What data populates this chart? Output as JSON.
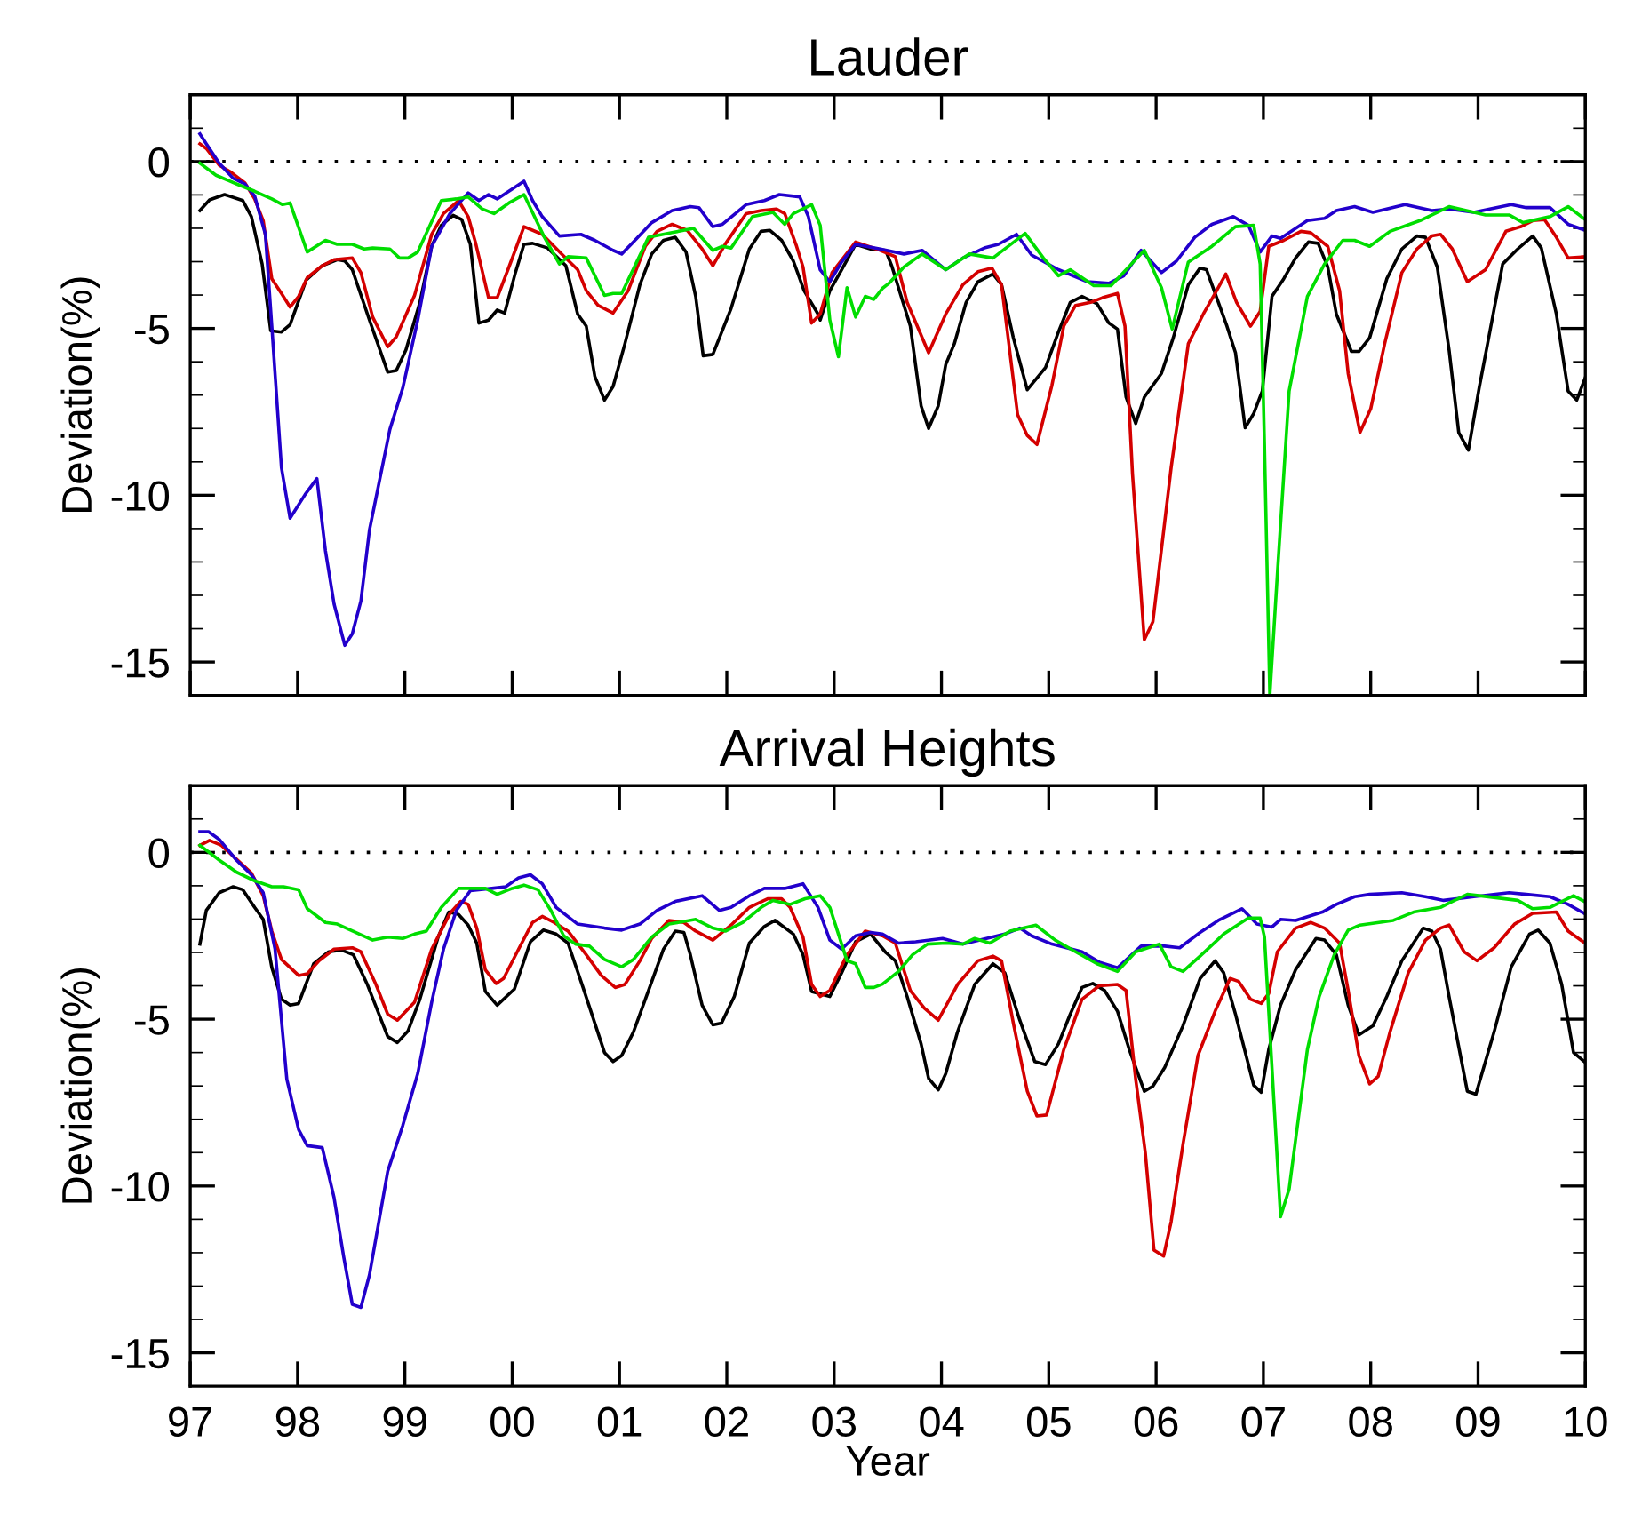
{
  "chart_data": [
    {
      "type": "line",
      "title": "Lauder",
      "ylabel": "Deviation(%)",
      "tick_labels": "y",
      "line_style": "solid",
      "xlim": [
        1997,
        2010
      ],
      "ylim": [
        -16,
        2
      ],
      "yticks": [
        -15,
        -10,
        -5,
        0,
        {
          "value": -16,
          "label": null
        },
        {
          "value": -14,
          "label": null
        },
        {
          "value": -13,
          "label": null
        },
        {
          "value": -12,
          "label": null
        },
        {
          "value": -11,
          "label": null
        },
        {
          "value": -9,
          "label": null
        },
        {
          "value": -8,
          "label": null
        },
        {
          "value": -7,
          "label": null
        },
        {
          "value": -6,
          "label": null
        },
        {
          "value": -4,
          "label": null
        },
        {
          "value": -3,
          "label": null
        },
        {
          "value": -2,
          "label": null
        },
        {
          "value": -1,
          "label": null
        },
        {
          "value": 1,
          "label": null
        },
        {
          "value": 2,
          "label": null
        }
      ],
      "ref_lines": [
        {
          "axis": "y",
          "value": 0,
          "color": "#000000",
          "line_style": "dotted"
        }
      ],
      "series": [
        {
          "color": "#000000",
          "x": [
            1997.09,
            1997.18,
            1997.32,
            1997.49,
            1997.57,
            1997.67,
            1997.75,
            1997.85,
            1997.93,
            1998.08,
            1998.23,
            1998.37,
            1998.44,
            1998.51,
            1998.67,
            1998.84,
            1998.92,
            1999.01,
            1999.14,
            1999.25,
            1999.34,
            1999.45,
            1999.53,
            1999.61,
            1999.69,
            1999.78,
            1999.86,
            1999.93,
            2000.03,
            2000.11,
            2000.19,
            2000.33,
            2000.5,
            2000.61,
            2000.69,
            2000.77,
            2000.86,
            2000.94,
            2001.05,
            2001.19,
            2001.3,
            2001.41,
            2001.52,
            2001.62,
            2001.71,
            2001.78,
            2001.87,
            2002.04,
            2002.21,
            2002.32,
            2002.4,
            2002.51,
            2002.62,
            2002.72,
            2002.85,
            2002.87,
            2002.96,
            2003.07,
            2003.2,
            2003.34,
            2003.48,
            2003.54,
            2003.71,
            2003.81,
            2003.88,
            2003.97,
            2004.04,
            2004.12,
            2004.23,
            2004.34,
            2004.48,
            2004.56,
            2004.67,
            2004.8,
            2004.97,
            2005.09,
            2005.2,
            2005.31,
            2005.45,
            2005.56,
            2005.64,
            2005.72,
            2005.81,
            2005.89,
            2006.05,
            2006.16,
            2006.3,
            2006.41,
            2006.47,
            2006.55,
            2006.66,
            2006.74,
            2006.83,
            2006.91,
            2006.99,
            2007.08,
            2007.19,
            2007.3,
            2007.42,
            2007.51,
            2007.6,
            2007.68,
            2007.82,
            2007.89,
            2007.99,
            2008.15,
            2008.29,
            2008.43,
            2008.51,
            2008.62,
            2008.73,
            2008.82,
            2008.91,
            2009.01,
            2009.12,
            2009.23,
            2009.37,
            2009.51,
            2009.59,
            2009.73,
            2009.84,
            2009.92,
            2010.0
          ],
          "values": [
            -1.47,
            -1.15,
            -0.99,
            -1.17,
            -1.65,
            -3.07,
            -5.07,
            -5.11,
            -4.89,
            -3.55,
            -3.12,
            -2.94,
            -2.98,
            -3.24,
            -4.75,
            -6.31,
            -6.26,
            -5.64,
            -4.22,
            -2.54,
            -1.91,
            -1.61,
            -1.74,
            -2.48,
            -4.84,
            -4.75,
            -4.45,
            -4.54,
            -3.33,
            -2.48,
            -2.45,
            -2.59,
            -3.12,
            -4.57,
            -4.93,
            -6.44,
            -7.15,
            -6.74,
            -5.46,
            -3.69,
            -2.77,
            -2.36,
            -2.27,
            -2.71,
            -4.04,
            -5.82,
            -5.78,
            -4.4,
            -2.62,
            -2.09,
            -2.06,
            -2.36,
            -2.98,
            -3.87,
            -4.57,
            -4.75,
            -3.87,
            -3.24,
            -2.48,
            -2.62,
            -2.66,
            -3.16,
            -4.93,
            -7.32,
            -8.0,
            -7.32,
            -6.08,
            -5.46,
            -4.22,
            -3.6,
            -3.37,
            -3.69,
            -5.28,
            -6.84,
            -6.17,
            -5.11,
            -4.22,
            -4.04,
            -4.26,
            -4.84,
            -5.02,
            -7.06,
            -7.85,
            -7.06,
            -6.35,
            -5.28,
            -3.69,
            -3.19,
            -3.24,
            -3.95,
            -4.93,
            -5.73,
            -7.98,
            -7.55,
            -6.88,
            -4.04,
            -3.51,
            -2.89,
            -2.41,
            -2.45,
            -3.16,
            -4.57,
            -5.69,
            -5.69,
            -5.28,
            -3.51,
            -2.62,
            -2.23,
            -2.27,
            -3.16,
            -5.64,
            -8.12,
            -8.65,
            -6.79,
            -4.93,
            -3.07,
            -2.62,
            -2.23,
            -2.59,
            -4.57,
            -6.88,
            -7.15,
            -6.47
          ]
        },
        {
          "color": "#d40000",
          "x": [
            1997.09,
            1997.15,
            1997.27,
            1997.38,
            1997.51,
            1997.6,
            1997.68,
            1997.76,
            1997.85,
            1997.93,
            1998.01,
            1998.09,
            1998.23,
            1998.34,
            1998.51,
            1998.59,
            1998.7,
            1998.84,
            1998.92,
            1999.09,
            1999.25,
            1999.36,
            1999.5,
            1999.59,
            1999.66,
            1999.78,
            1999.86,
            1999.97,
            2000.11,
            2000.28,
            2000.47,
            2000.61,
            2000.69,
            2000.8,
            2000.94,
            2001.08,
            2001.24,
            2001.35,
            2001.49,
            2001.63,
            2001.77,
            2001.87,
            2001.99,
            2002.18,
            2002.32,
            2002.46,
            2002.54,
            2002.65,
            2002.71,
            2002.79,
            2002.87,
            2002.98,
            2003.2,
            2003.43,
            2003.57,
            2003.68,
            2003.88,
            2004.04,
            2004.2,
            2004.34,
            2004.47,
            2004.56,
            2004.71,
            2004.8,
            2004.89,
            2005.03,
            2005.14,
            2005.25,
            2005.39,
            2005.5,
            2005.64,
            2005.71,
            2005.78,
            2005.89,
            2005.97,
            2006.14,
            2006.3,
            2006.44,
            2006.55,
            2006.65,
            2006.75,
            2006.88,
            2006.97,
            2007.05,
            2007.19,
            2007.35,
            2007.44,
            2007.6,
            2007.71,
            2007.79,
            2007.9,
            2008.0,
            2008.13,
            2008.29,
            2008.43,
            2008.57,
            2008.65,
            2008.76,
            2008.9,
            2009.07,
            2009.26,
            2009.4,
            2009.51,
            2009.62,
            2009.73,
            2009.84,
            2010.0
          ],
          "values": [
            0.53,
            0.39,
            -0.11,
            -0.32,
            -0.64,
            -1.12,
            -1.77,
            -3.51,
            -3.95,
            -4.36,
            -4.04,
            -3.48,
            -3.12,
            -2.94,
            -2.89,
            -3.33,
            -4.66,
            -5.55,
            -5.25,
            -4.01,
            -2.18,
            -1.56,
            -1.17,
            -1.65,
            -2.45,
            -4.08,
            -4.08,
            -3.16,
            -1.95,
            -2.18,
            -2.8,
            -3.24,
            -3.87,
            -4.31,
            -4.54,
            -3.87,
            -2.54,
            -2.09,
            -1.88,
            -2.06,
            -2.62,
            -3.12,
            -2.45,
            -1.56,
            -1.47,
            -1.42,
            -1.56,
            -2.54,
            -3.16,
            -4.84,
            -4.57,
            -3.33,
            -2.41,
            -2.66,
            -2.85,
            -4.22,
            -5.73,
            -4.57,
            -3.69,
            -3.3,
            -3.19,
            -3.69,
            -7.59,
            -8.21,
            -8.48,
            -6.7,
            -4.93,
            -4.31,
            -4.22,
            -4.08,
            -3.95,
            -4.93,
            -9.36,
            -14.33,
            -13.79,
            -9.18,
            -5.46,
            -4.57,
            -3.95,
            -3.37,
            -4.22,
            -4.93,
            -4.49,
            -2.54,
            -2.36,
            -2.09,
            -2.13,
            -2.54,
            -3.87,
            -6.35,
            -8.12,
            -7.41,
            -5.46,
            -3.33,
            -2.62,
            -2.23,
            -2.18,
            -2.62,
            -3.6,
            -3.24,
            -2.09,
            -1.95,
            -1.77,
            -1.74,
            -2.27,
            -2.89,
            -2.85
          ]
        },
        {
          "color": "#2200cc",
          "x": [
            1997.09,
            1997.15,
            1997.27,
            1997.4,
            1997.51,
            1997.6,
            1997.7,
            1997.76,
            1997.85,
            1997.93,
            1998.07,
            1998.18,
            1998.26,
            1998.34,
            1998.44,
            1998.51,
            1998.59,
            1998.67,
            1998.86,
            1998.98,
            1999.12,
            1999.25,
            1999.42,
            1999.59,
            1999.69,
            1999.78,
            1999.86,
            2000.11,
            2000.19,
            2000.28,
            2000.44,
            2000.64,
            2000.77,
            2000.94,
            2001.02,
            2001.13,
            2001.3,
            2001.49,
            2001.66,
            2001.74,
            2001.87,
            2001.96,
            2002.18,
            2002.35,
            2002.49,
            2002.68,
            2002.76,
            2002.87,
            2002.96,
            2003.07,
            2003.2,
            2003.43,
            2003.65,
            2003.82,
            2004.04,
            2004.2,
            2004.4,
            2004.53,
            2004.7,
            2004.84,
            2005.09,
            2005.36,
            2005.56,
            2005.7,
            2005.86,
            2006.05,
            2006.19,
            2006.36,
            2006.52,
            2006.72,
            2006.86,
            2006.97,
            2007.08,
            2007.16,
            2007.41,
            2007.57,
            2007.68,
            2007.85,
            2008.02,
            2008.32,
            2008.57,
            2008.73,
            2008.96,
            2009.31,
            2009.45,
            2009.67,
            2009.84,
            2010.0
          ],
          "values": [
            0.83,
            0.53,
            -0.05,
            -0.5,
            -0.67,
            -1.03,
            -2.18,
            -4.93,
            -9.18,
            -10.69,
            -9.98,
            -9.5,
            -11.67,
            -13.26,
            -14.5,
            -14.15,
            -13.17,
            -11.04,
            -8.03,
            -6.79,
            -4.75,
            -2.54,
            -1.56,
            -0.94,
            -1.17,
            -0.99,
            -1.12,
            -0.59,
            -1.17,
            -1.65,
            -2.23,
            -2.18,
            -2.36,
            -2.66,
            -2.77,
            -2.41,
            -1.83,
            -1.47,
            -1.35,
            -1.38,
            -1.95,
            -1.88,
            -1.29,
            -1.17,
            -0.99,
            -1.06,
            -1.65,
            -3.24,
            -3.6,
            -3.01,
            -2.48,
            -2.62,
            -2.77,
            -2.66,
            -3.24,
            -2.89,
            -2.59,
            -2.48,
            -2.18,
            -2.8,
            -3.24,
            -3.6,
            -3.65,
            -3.42,
            -2.66,
            -3.33,
            -2.98,
            -2.27,
            -1.88,
            -1.65,
            -1.91,
            -2.71,
            -2.23,
            -2.3,
            -1.77,
            -1.7,
            -1.47,
            -1.35,
            -1.52,
            -1.29,
            -1.47,
            -1.42,
            -1.52,
            -1.29,
            -1.38,
            -1.38,
            -1.88,
            -2.06
          ]
        },
        {
          "color": "#00dd00",
          "x": [
            1997.09,
            1997.24,
            1997.43,
            1997.6,
            1997.76,
            1997.86,
            1997.93,
            1998.09,
            1998.26,
            1998.37,
            1998.51,
            1998.62,
            1998.7,
            1998.86,
            1998.95,
            1999.03,
            1999.12,
            1999.34,
            1999.48,
            1999.59,
            1999.72,
            1999.83,
            1999.97,
            2000.11,
            2000.3,
            2000.44,
            2000.52,
            2000.69,
            2000.86,
            2000.94,
            2001.02,
            2001.27,
            2001.49,
            2001.69,
            2001.87,
            2001.96,
            2002.04,
            2002.24,
            2002.43,
            2002.54,
            2002.62,
            2002.79,
            2002.87,
            2002.96,
            2003.04,
            2003.12,
            2003.2,
            2003.29,
            2003.37,
            2003.45,
            2003.51,
            2003.65,
            2003.82,
            2004.04,
            2004.26,
            2004.48,
            2004.78,
            2004.95,
            2005.09,
            2005.2,
            2005.42,
            2005.58,
            2005.89,
            2006.05,
            2006.15,
            2006.3,
            2006.52,
            2006.74,
            2006.91,
            2006.97,
            2007.01,
            2007.06,
            2007.13,
            2007.24,
            2007.41,
            2007.57,
            2007.74,
            2007.85,
            2007.99,
            2008.18,
            2008.46,
            2008.73,
            2009.07,
            2009.29,
            2009.42,
            2009.67,
            2009.84,
            2010.0
          ],
          "values": [
            -0.05,
            -0.41,
            -0.67,
            -0.89,
            -1.12,
            -1.29,
            -1.24,
            -2.71,
            -2.36,
            -2.48,
            -2.48,
            -2.62,
            -2.59,
            -2.62,
            -2.89,
            -2.89,
            -2.71,
            -1.17,
            -1.12,
            -1.06,
            -1.42,
            -1.56,
            -1.24,
            -0.99,
            -2.27,
            -3.07,
            -2.85,
            -2.89,
            -4.01,
            -3.95,
            -3.95,
            -2.27,
            -2.13,
            -2.0,
            -2.66,
            -2.54,
            -2.59,
            -1.65,
            -1.52,
            -1.88,
            -1.56,
            -1.29,
            -1.91,
            -4.75,
            -5.85,
            -3.78,
            -4.66,
            -4.04,
            -4.13,
            -3.8,
            -3.65,
            -3.16,
            -2.77,
            -3.24,
            -2.77,
            -2.89,
            -2.15,
            -2.89,
            -3.42,
            -3.24,
            -3.72,
            -3.72,
            -2.66,
            -3.78,
            -5.02,
            -3.01,
            -2.54,
            -1.95,
            -1.91,
            -3.07,
            -8.48,
            -16,
            -12.38,
            -6.88,
            -4.04,
            -3.07,
            -2.36,
            -2.36,
            -2.54,
            -2.09,
            -1.77,
            -1.35,
            -1.6,
            -1.6,
            -1.83,
            -1.65,
            -1.35,
            -1.74
          ]
        }
      ]
    },
    {
      "type": "line",
      "title": "Arrival Heights",
      "xlabel": "Year",
      "ylabel": "Deviation(%)",
      "line_style": "solid",
      "xlim": [
        1997,
        2010
      ],
      "ylim": [
        -16,
        2
      ],
      "xticks": [
        {
          "value": 1997,
          "label": "97"
        },
        {
          "value": 1998,
          "label": "98"
        },
        {
          "value": 1999,
          "label": "99"
        },
        {
          "value": 2000,
          "label": "00"
        },
        {
          "value": 2001,
          "label": "01"
        },
        {
          "value": 2002,
          "label": "02"
        },
        {
          "value": 2003,
          "label": "03"
        },
        {
          "value": 2004,
          "label": "04"
        },
        {
          "value": 2005,
          "label": "05"
        },
        {
          "value": 2006,
          "label": "06"
        },
        {
          "value": 2007,
          "label": "07"
        },
        {
          "value": 2008,
          "label": "08"
        },
        {
          "value": 2009,
          "label": "09"
        },
        {
          "value": 2010,
          "label": "10"
        }
      ],
      "yticks": [
        -15,
        -10,
        -5,
        0,
        {
          "value": -16,
          "label": null
        },
        {
          "value": -14,
          "label": null
        },
        {
          "value": -13,
          "label": null
        },
        {
          "value": -12,
          "label": null
        },
        {
          "value": -11,
          "label": null
        },
        {
          "value": -9,
          "label": null
        },
        {
          "value": -8,
          "label": null
        },
        {
          "value": -7,
          "label": null
        },
        {
          "value": -6,
          "label": null
        },
        {
          "value": -4,
          "label": null
        },
        {
          "value": -3,
          "label": null
        },
        {
          "value": -2,
          "label": null
        },
        {
          "value": -1,
          "label": null
        },
        {
          "value": 1,
          "label": null
        },
        {
          "value": 2,
          "label": null
        }
      ],
      "ref_lines": [
        {
          "axis": "y",
          "value": 0,
          "color": "#000000",
          "line_style": "dotted"
        }
      ],
      "series": [
        {
          "color": "#000000",
          "x": [
            1997.09,
            1997.15,
            1997.27,
            1997.4,
            1997.49,
            1997.6,
            1997.68,
            1997.76,
            1997.85,
            1997.93,
            1998.01,
            1998.15,
            1998.29,
            1998.41,
            1998.52,
            1998.65,
            1998.84,
            1998.93,
            1999.03,
            1999.14,
            1999.31,
            1999.41,
            1999.5,
            1999.59,
            1999.67,
            1999.75,
            1999.86,
            2000.02,
            2000.17,
            2000.29,
            2000.41,
            2000.52,
            2000.66,
            2000.86,
            2000.94,
            2001.02,
            2001.13,
            2001.27,
            2001.41,
            2001.52,
            2001.6,
            2001.66,
            2001.77,
            2001.87,
            2001.95,
            2002.07,
            2002.21,
            2002.35,
            2002.45,
            2002.62,
            2002.71,
            2002.79,
            2002.96,
            2003.07,
            2003.2,
            2003.34,
            2003.48,
            2003.57,
            2003.68,
            2003.81,
            2003.88,
            2003.97,
            2004.04,
            2004.15,
            2004.31,
            2004.48,
            2004.59,
            2004.73,
            2004.87,
            2004.97,
            2005.09,
            2005.2,
            2005.31,
            2005.41,
            2005.52,
            2005.64,
            2005.75,
            2005.89,
            2005.97,
            2006.08,
            2006.25,
            2006.41,
            2006.55,
            2006.63,
            2006.74,
            2006.91,
            2006.98,
            2007.05,
            2007.16,
            2007.3,
            2007.49,
            2007.57,
            2007.68,
            2007.79,
            2007.89,
            2008.02,
            2008.15,
            2008.29,
            2008.49,
            2008.57,
            2008.65,
            2008.73,
            2008.9,
            2008.98,
            2009.15,
            2009.31,
            2009.48,
            2009.56,
            2009.67,
            2009.78,
            2009.89,
            2009.99
          ],
          "values": [
            -2.75,
            -1.74,
            -1.21,
            -1.03,
            -1.12,
            -1.65,
            -2.01,
            -3.45,
            -4.4,
            -4.58,
            -4.53,
            -3.34,
            -2.98,
            -2.93,
            -3.07,
            -3.96,
            -5.52,
            -5.7,
            -5.35,
            -4.4,
            -2.54,
            -1.79,
            -1.86,
            -2.18,
            -2.72,
            -4.17,
            -4.58,
            -4.1,
            -2.68,
            -2.33,
            -2.45,
            -2.72,
            -4.05,
            -6.0,
            -6.27,
            -6.09,
            -5.38,
            -4.14,
            -2.9,
            -2.36,
            -2.4,
            -3.07,
            -4.58,
            -5.17,
            -5.12,
            -4.32,
            -2.72,
            -2.22,
            -2.04,
            -2.45,
            -3.07,
            -4.17,
            -4.32,
            -3.61,
            -2.68,
            -2.45,
            -3.0,
            -3.25,
            -4.32,
            -5.74,
            -6.77,
            -7.12,
            -6.63,
            -5.38,
            -3.96,
            -3.34,
            -3.61,
            -5.03,
            -6.27,
            -6.36,
            -5.74,
            -4.85,
            -4.05,
            -3.93,
            -4.14,
            -4.76,
            -5.91,
            -7.16,
            -7.01,
            -6.45,
            -5.2,
            -3.78,
            -3.25,
            -3.61,
            -4.85,
            -6.98,
            -7.19,
            -5.91,
            -4.58,
            -3.52,
            -2.58,
            -2.63,
            -3.07,
            -4.58,
            -5.47,
            -5.2,
            -4.32,
            -3.25,
            -2.27,
            -2.36,
            -2.9,
            -4.32,
            -7.16,
            -7.25,
            -5.38,
            -3.43,
            -2.45,
            -2.33,
            -2.72,
            -3.96,
            -6.0,
            -6.27
          ]
        },
        {
          "color": "#d40000",
          "x": [
            1997.09,
            1997.18,
            1997.29,
            1997.43,
            1997.57,
            1997.68,
            1997.76,
            1997.85,
            1998.01,
            1998.09,
            1998.2,
            1998.34,
            1998.51,
            1998.59,
            1998.73,
            1998.84,
            1998.93,
            1999.09,
            1999.25,
            1999.42,
            1999.52,
            1999.59,
            1999.67,
            1999.75,
            1999.85,
            1999.92,
            2000.06,
            2000.19,
            2000.28,
            2000.39,
            2000.52,
            2000.69,
            2000.83,
            2000.96,
            2001.05,
            2001.19,
            2001.3,
            2001.46,
            2001.6,
            2001.71,
            2001.87,
            2002.04,
            2002.21,
            2002.38,
            2002.51,
            2002.59,
            2002.71,
            2002.79,
            2002.87,
            2002.96,
            2003.12,
            2003.29,
            2003.45,
            2003.57,
            2003.71,
            2003.84,
            2003.97,
            2004.15,
            2004.34,
            2004.48,
            2004.56,
            2004.67,
            2004.8,
            2004.89,
            2004.98,
            2005.14,
            2005.31,
            2005.47,
            2005.64,
            2005.72,
            2005.81,
            2005.9,
            2005.98,
            2006.07,
            2006.14,
            2006.25,
            2006.39,
            2006.55,
            2006.69,
            2006.77,
            2006.88,
            2006.98,
            2007.05,
            2007.13,
            2007.3,
            2007.44,
            2007.57,
            2007.71,
            2007.79,
            2007.89,
            2007.99,
            2008.07,
            2008.18,
            2008.35,
            2008.51,
            2008.65,
            2008.73,
            2008.87,
            2008.99,
            2009.15,
            2009.34,
            2009.51,
            2009.73,
            2009.84,
            2009.98
          ],
          "values": [
            0.21,
            0.36,
            0.21,
            -0.2,
            -0.62,
            -1.3,
            -2.36,
            -3.21,
            -3.69,
            -3.64,
            -3.25,
            -2.9,
            -2.86,
            -2.98,
            -3.96,
            -4.85,
            -5.03,
            -4.49,
            -2.9,
            -1.83,
            -1.47,
            -1.56,
            -2.27,
            -3.52,
            -3.93,
            -3.78,
            -2.9,
            -2.1,
            -1.92,
            -2.1,
            -2.36,
            -3.07,
            -3.69,
            -4.05,
            -3.96,
            -3.25,
            -2.58,
            -2.04,
            -2.1,
            -2.36,
            -2.63,
            -2.18,
            -1.65,
            -1.39,
            -1.39,
            -1.65,
            -2.54,
            -3.96,
            -4.32,
            -4.14,
            -3.07,
            -2.36,
            -2.5,
            -2.72,
            -4.14,
            -4.67,
            -5.03,
            -3.96,
            -3.25,
            -3.11,
            -3.25,
            -5.12,
            -7.16,
            -7.9,
            -7.87,
            -5.91,
            -4.4,
            -4.0,
            -3.96,
            -4.14,
            -6.8,
            -9.02,
            -11.92,
            -12.1,
            -11.07,
            -8.76,
            -6.09,
            -4.76,
            -3.78,
            -3.87,
            -4.4,
            -4.53,
            -4.23,
            -2.98,
            -2.27,
            -2.1,
            -2.27,
            -2.72,
            -4.14,
            -6.09,
            -6.94,
            -6.71,
            -5.38,
            -3.61,
            -2.63,
            -2.27,
            -2.18,
            -2.98,
            -3.25,
            -2.86,
            -2.15,
            -1.83,
            -1.79,
            -2.36,
            -2.68
          ]
        },
        {
          "color": "#2200cc",
          "x": [
            1997.09,
            1997.17,
            1997.27,
            1997.43,
            1997.57,
            1997.68,
            1997.79,
            1997.9,
            1998.01,
            1998.09,
            1998.23,
            1998.34,
            1998.43,
            1998.51,
            1998.59,
            1998.67,
            1998.84,
            1998.98,
            1999.12,
            1999.25,
            1999.36,
            1999.48,
            1999.61,
            1999.81,
            1999.94,
            2000.06,
            2000.17,
            2000.28,
            2000.41,
            2000.61,
            2000.86,
            2001.02,
            2001.19,
            2001.35,
            2001.52,
            2001.77,
            2001.93,
            2002.04,
            2002.21,
            2002.35,
            2002.54,
            2002.71,
            2002.85,
            2002.96,
            2003.07,
            2003.2,
            2003.34,
            2003.45,
            2003.6,
            2003.76,
            2004.01,
            2004.2,
            2004.42,
            2004.59,
            2004.73,
            2004.84,
            2005.03,
            2005.31,
            2005.47,
            2005.64,
            2005.86,
            2006.08,
            2006.22,
            2006.41,
            2006.58,
            2006.8,
            2006.94,
            2007.08,
            2007.16,
            2007.3,
            2007.55,
            2007.68,
            2007.85,
            2007.99,
            2008.29,
            2008.51,
            2008.68,
            2008.96,
            2009.29,
            2009.45,
            2009.67,
            2009.84,
            2009.99
          ],
          "values": [
            0.62,
            0.62,
            0.39,
            -0.23,
            -0.67,
            -1.21,
            -2.9,
            -6.8,
            -8.31,
            -8.79,
            -8.85,
            -10.35,
            -12.13,
            -13.55,
            -13.64,
            -12.66,
            -9.56,
            -8.19,
            -6.63,
            -4.49,
            -2.9,
            -1.74,
            -1.15,
            -1.08,
            -1.03,
            -0.76,
            -0.67,
            -0.94,
            -1.65,
            -2.15,
            -2.27,
            -2.33,
            -2.15,
            -1.74,
            -1.47,
            -1.3,
            -1.74,
            -1.65,
            -1.3,
            -1.08,
            -1.08,
            -0.94,
            -1.65,
            -2.63,
            -2.9,
            -2.5,
            -2.4,
            -2.45,
            -2.72,
            -2.68,
            -2.58,
            -2.75,
            -2.58,
            -2.45,
            -2.27,
            -2.5,
            -2.75,
            -2.98,
            -3.29,
            -3.46,
            -2.81,
            -2.81,
            -2.86,
            -2.4,
            -2.04,
            -1.69,
            -2.15,
            -2.24,
            -2.01,
            -2.04,
            -1.79,
            -1.56,
            -1.33,
            -1.26,
            -1.21,
            -1.33,
            -1.44,
            -1.33,
            -1.21,
            -1.26,
            -1.33,
            -1.56,
            -1.83
          ]
        },
        {
          "color": "#00dd00",
          "x": [
            1997.09,
            1997.27,
            1997.43,
            1997.6,
            1997.76,
            1997.87,
            1998.01,
            1998.09,
            1998.26,
            1998.37,
            1998.54,
            1998.7,
            1998.84,
            1998.98,
            1999.09,
            1999.2,
            1999.34,
            1999.5,
            1999.75,
            1999.86,
            2000.0,
            2000.11,
            2000.24,
            2000.36,
            2000.48,
            2000.59,
            2000.72,
            2000.86,
            2001.02,
            2001.13,
            2001.3,
            2001.46,
            2001.71,
            2001.87,
            2001.99,
            2002.15,
            2002.32,
            2002.43,
            2002.59,
            2002.73,
            2002.87,
            2002.96,
            2003.04,
            2003.12,
            2003.2,
            2003.29,
            2003.37,
            2003.45,
            2003.6,
            2003.73,
            2003.87,
            2004.04,
            2004.2,
            2004.31,
            2004.45,
            2004.64,
            2004.88,
            2005.06,
            2005.25,
            2005.45,
            2005.64,
            2005.81,
            2006.03,
            2006.14,
            2006.25,
            2006.41,
            2006.63,
            2006.86,
            2006.97,
            2007.01,
            2007.08,
            2007.16,
            2007.24,
            2007.41,
            2007.52,
            2007.66,
            2007.79,
            2007.9,
            2008.21,
            2008.4,
            2008.65,
            2008.76,
            2008.9,
            2009.01,
            2009.37,
            2009.51,
            2009.67,
            2009.89,
            2009.99
          ],
          "values": [
            0.21,
            -0.23,
            -0.59,
            -0.85,
            -1.03,
            -1.03,
            -1.12,
            -1.69,
            -2.1,
            -2.15,
            -2.4,
            -2.63,
            -2.54,
            -2.58,
            -2.45,
            -2.36,
            -1.65,
            -1.08,
            -1.08,
            -1.26,
            -1.08,
            -0.98,
            -1.12,
            -1.74,
            -2.5,
            -2.75,
            -2.81,
            -3.21,
            -3.43,
            -3.21,
            -2.54,
            -2.15,
            -2.01,
            -2.27,
            -2.36,
            -2.1,
            -1.65,
            -1.44,
            -1.56,
            -1.39,
            -1.3,
            -1.65,
            -2.45,
            -3.25,
            -3.34,
            -4.05,
            -4.05,
            -3.95,
            -3.57,
            -3.07,
            -2.75,
            -2.72,
            -2.75,
            -2.58,
            -2.72,
            -2.36,
            -2.18,
            -2.63,
            -2.98,
            -3.34,
            -3.57,
            -2.98,
            -2.75,
            -3.43,
            -3.57,
            -3.11,
            -2.45,
            -1.97,
            -1.97,
            -2.54,
            -6.45,
            -10.92,
            -10.09,
            -5.91,
            -4.32,
            -3.07,
            -2.33,
            -2.18,
            -2.04,
            -1.79,
            -1.65,
            -1.47,
            -1.26,
            -1.3,
            -1.44,
            -1.69,
            -1.65,
            -1.3,
            -1.47
          ]
        }
      ]
    }
  ]
}
